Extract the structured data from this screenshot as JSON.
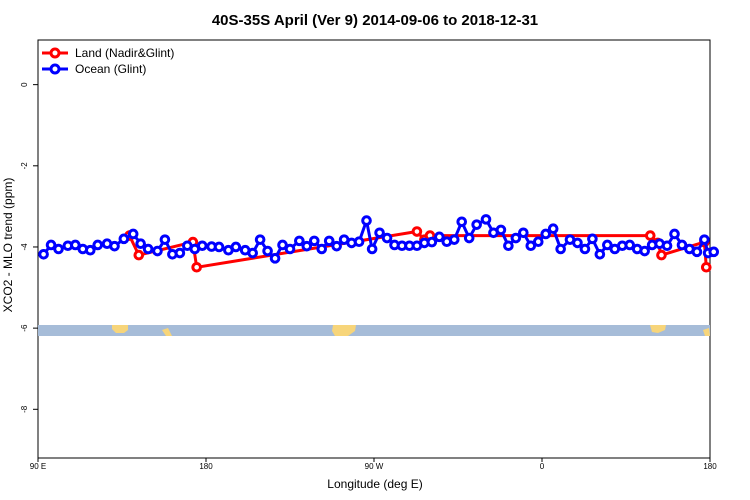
{
  "colors": {
    "land": "#ff0000",
    "ocean": "#0000ff",
    "band": "#a6bcd8",
    "landmass": "#f7d57a"
  },
  "chart_data": {
    "type": "line",
    "title": "40S-35S April (Ver 9)   2014-09-06 to 2018-12-31",
    "xlabel": "Longitude (deg E)",
    "ylabel": "XCO2 - MLO trend (ppm)",
    "xlim": [
      90,
      450
    ],
    "ylim": [
      -9.2,
      1.1
    ],
    "x_ticks": [
      {
        "value": 90,
        "label": "90 E"
      },
      {
        "value": 180,
        "label": "180"
      },
      {
        "value": 270,
        "label": "90 W"
      },
      {
        "value": 360,
        "label": "0"
      },
      {
        "value": 450,
        "label": "180"
      }
    ],
    "y_ticks": [
      0,
      -2,
      -4,
      -6,
      -8
    ],
    "grid": false,
    "legend_position": "top-left",
    "series": [
      {
        "name": "Land (Nadir&Glint)",
        "color": "#ff0000",
        "points": [
          [
            139,
            -3.72
          ],
          [
            144,
            -4.2
          ],
          [
            173,
            -3.88
          ],
          [
            175,
            -4.5
          ],
          [
            293,
            -3.62
          ],
          [
            297,
            -3.82
          ],
          [
            300,
            -3.72
          ],
          [
            418,
            -3.72
          ],
          [
            422,
            -3.9
          ],
          [
            424,
            -4.2
          ],
          [
            447,
            -3.88
          ],
          [
            448,
            -4.5
          ]
        ]
      },
      {
        "name": "Ocean (Glint)",
        "color": "#0000ff",
        "points": [
          [
            93,
            -4.18
          ],
          [
            97,
            -3.95
          ],
          [
            101,
            -4.05
          ],
          [
            106,
            -3.97
          ],
          [
            110,
            -3.95
          ],
          [
            114,
            -4.05
          ],
          [
            118,
            -4.08
          ],
          [
            122,
            -3.95
          ],
          [
            127,
            -3.92
          ],
          [
            131,
            -3.98
          ],
          [
            136,
            -3.8
          ],
          [
            141,
            -3.68
          ],
          [
            145,
            -3.92
          ],
          [
            149,
            -4.05
          ],
          [
            154,
            -4.1
          ],
          [
            158,
            -3.82
          ],
          [
            162,
            -4.18
          ],
          [
            166,
            -4.15
          ],
          [
            170,
            -3.97
          ],
          [
            174,
            -4.05
          ],
          [
            178,
            -3.97
          ],
          [
            183,
            -3.99
          ],
          [
            187,
            -4.0
          ],
          [
            192,
            -4.08
          ],
          [
            196,
            -4.0
          ],
          [
            201,
            -4.08
          ],
          [
            205,
            -4.15
          ],
          [
            209,
            -3.82
          ],
          [
            213,
            -4.1
          ],
          [
            217,
            -4.28
          ],
          [
            221,
            -3.95
          ],
          [
            225,
            -4.05
          ],
          [
            230,
            -3.85
          ],
          [
            234,
            -3.98
          ],
          [
            238,
            -3.85
          ],
          [
            242,
            -4.05
          ],
          [
            246,
            -3.85
          ],
          [
            250,
            -3.98
          ],
          [
            254,
            -3.82
          ],
          [
            258,
            -3.9
          ],
          [
            262,
            -3.87
          ],
          [
            266,
            -3.35
          ],
          [
            269,
            -4.05
          ],
          [
            273,
            -3.65
          ],
          [
            277,
            -3.78
          ],
          [
            281,
            -3.95
          ],
          [
            285,
            -3.97
          ],
          [
            289,
            -3.97
          ],
          [
            293,
            -3.97
          ],
          [
            297,
            -3.9
          ],
          [
            301,
            -3.88
          ],
          [
            305,
            -3.75
          ],
          [
            309,
            -3.87
          ],
          [
            313,
            -3.82
          ],
          [
            317,
            -3.38
          ],
          [
            321,
            -3.78
          ],
          [
            325,
            -3.45
          ],
          [
            330,
            -3.32
          ],
          [
            334,
            -3.65
          ],
          [
            338,
            -3.58
          ],
          [
            342,
            -3.97
          ],
          [
            346,
            -3.78
          ],
          [
            350,
            -3.65
          ],
          [
            354,
            -3.97
          ],
          [
            358,
            -3.87
          ],
          [
            362,
            -3.68
          ],
          [
            366,
            -3.55
          ],
          [
            370,
            -4.05
          ],
          [
            375,
            -3.82
          ],
          [
            379,
            -3.9
          ],
          [
            383,
            -4.05
          ],
          [
            387,
            -3.8
          ],
          [
            391,
            -4.18
          ],
          [
            395,
            -3.95
          ],
          [
            399,
            -4.05
          ],
          [
            403,
            -3.97
          ],
          [
            407,
            -3.95
          ],
          [
            411,
            -4.05
          ],
          [
            415,
            -4.1
          ],
          [
            419,
            -3.95
          ],
          [
            423,
            -3.92
          ],
          [
            427,
            -3.97
          ],
          [
            431,
            -3.68
          ],
          [
            435,
            -3.95
          ],
          [
            439,
            -4.05
          ],
          [
            443,
            -4.12
          ],
          [
            447,
            -3.82
          ],
          [
            449,
            -4.15
          ],
          [
            452,
            -4.12
          ]
        ]
      }
    ]
  }
}
